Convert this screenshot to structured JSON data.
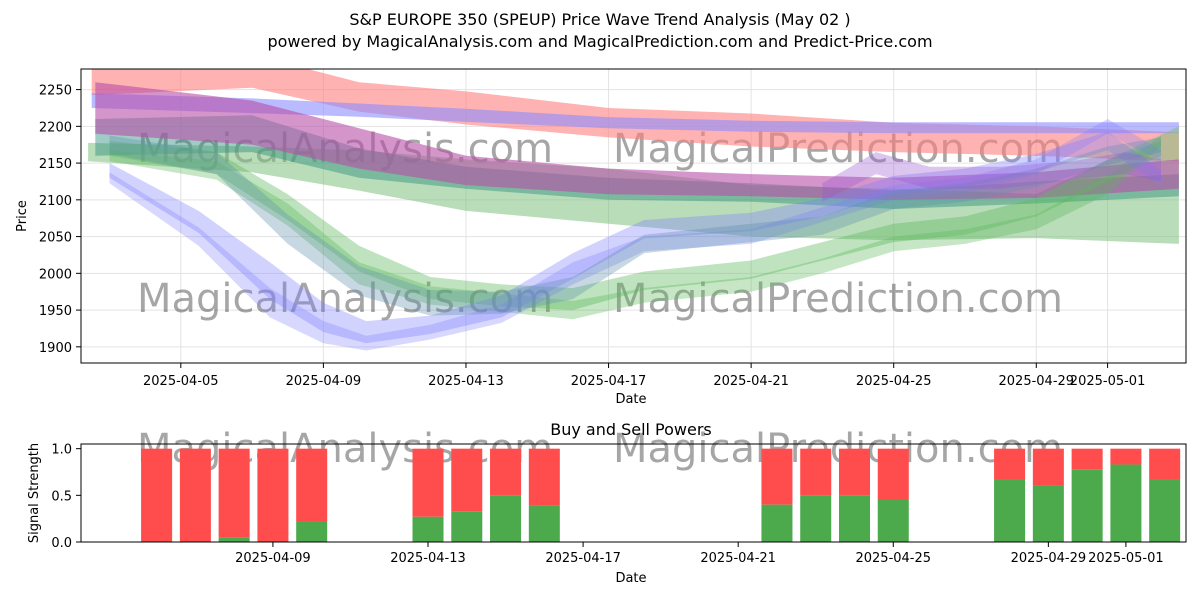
{
  "chart_data": [
    {
      "type": "area",
      "title_line1": "S&P EUROPE 350 (SPEUP) Price Wave Trend Analysis (May 02 )",
      "title_line2": "powered by MagicalAnalysis.com and MagicalPrediction.com and Predict-Price.com",
      "xlabel": "Date",
      "ylabel": "Price",
      "ylim": [
        1878,
        2278
      ],
      "yticks": [
        1900,
        1950,
        2000,
        2050,
        2100,
        2150,
        2200,
        2250
      ],
      "xlim": [
        2.2,
        33.2
      ],
      "xticks": [
        {
          "day": 5,
          "label": "2025-04-05"
        },
        {
          "day": 9,
          "label": "2025-04-09"
        },
        {
          "day": 13,
          "label": "2025-04-13"
        },
        {
          "day": 17,
          "label": "2025-04-17"
        },
        {
          "day": 21,
          "label": "2025-04-21"
        },
        {
          "day": 25,
          "label": "2025-04-25"
        },
        {
          "day": 29,
          "label": "2025-04-29"
        },
        {
          "day": 31,
          "label": "2025-05-01"
        }
      ],
      "watermarks": [
        "MagicalAnalysis.com",
        "MagicalPrediction.com"
      ],
      "bands": [
        {
          "name": "red-upper",
          "color": "#ff7f7f",
          "opacity": 0.6,
          "x": [
            2.5,
            7,
            10,
            13,
            17,
            21,
            25,
            29,
            33
          ],
          "y": [
            2265,
            2275,
            2240,
            2225,
            2205,
            2195,
            2185,
            2180,
            2172
          ],
          "w": [
            45,
            45,
            40,
            45,
            40,
            45,
            40,
            40,
            40
          ]
        },
        {
          "name": "blue-upper",
          "color": "#8c8cff",
          "opacity": 0.6,
          "x": [
            2.5,
            7,
            10,
            13,
            17,
            21,
            25,
            29,
            33
          ],
          "y": [
            2235,
            2228,
            2222,
            2215,
            2205,
            2200,
            2198,
            2198,
            2198
          ],
          "w": [
            20,
            20,
            18,
            18,
            15,
            15,
            15,
            15,
            15
          ]
        },
        {
          "name": "green-wide",
          "color": "#7fbf7f",
          "opacity": 0.55,
          "x": [
            2.4,
            7,
            10,
            13,
            17,
            21,
            25,
            29,
            33
          ],
          "y": [
            2165,
            2155,
            2140,
            2120,
            2105,
            2085,
            2080,
            2078,
            2120
          ],
          "w": [
            25,
            35,
            55,
            70,
            75,
            70,
            70,
            60,
            160
          ]
        },
        {
          "name": "teal-band",
          "color": "#2f8f7f",
          "opacity": 0.45,
          "x": [
            2.6,
            7,
            10,
            13,
            17,
            21,
            25,
            29,
            33
          ],
          "y": [
            2185,
            2190,
            2150,
            2130,
            2115,
            2110,
            2100,
            2110,
            2120
          ],
          "w": [
            50,
            50,
            40,
            30,
            30,
            25,
            25,
            30,
            30
          ]
        },
        {
          "name": "magenta-band",
          "color": "#b84fa8",
          "opacity": 0.6,
          "x": [
            2.6,
            7,
            10,
            13,
            17,
            21,
            25,
            29,
            33
          ],
          "y": [
            2225,
            2205,
            2170,
            2140,
            2125,
            2120,
            2115,
            2120,
            2135
          ],
          "w": [
            70,
            60,
            55,
            40,
            35,
            30,
            30,
            35,
            40
          ]
        },
        {
          "name": "green-wave-a",
          "color": "#5cb85c",
          "opacity": 0.4,
          "x": [
            3,
            6,
            8,
            10,
            12,
            14,
            16,
            18,
            21,
            23,
            25,
            27,
            29,
            31,
            32.5
          ],
          "y": [
            2170,
            2150,
            2090,
            2020,
            1980,
            1970,
            1965,
            1990,
            2005,
            2030,
            2055,
            2065,
            2090,
            2140,
            2170
          ],
          "w": [
            20,
            30,
            35,
            35,
            30,
            30,
            30,
            25,
            25,
            25,
            25,
            25,
            25,
            30,
            20
          ]
        },
        {
          "name": "green-wave-b",
          "color": "#5cb85c",
          "opacity": 0.35,
          "x": [
            3,
            6,
            8,
            10,
            12,
            14,
            16,
            18,
            21,
            23,
            25,
            27,
            29,
            31,
            32.5
          ],
          "y": [
            2160,
            2140,
            2080,
            2000,
            1970,
            1960,
            1950,
            1970,
            1985,
            2010,
            2040,
            2050,
            2070,
            2120,
            2180
          ],
          "w": [
            15,
            25,
            30,
            30,
            25,
            25,
            25,
            20,
            20,
            20,
            20,
            20,
            20,
            25,
            15
          ]
        },
        {
          "name": "blue-wave-a",
          "color": "#7f7fff",
          "opacity": 0.35,
          "x": [
            3,
            5.5,
            7.5,
            9,
            10.2,
            12,
            14,
            16,
            18,
            21,
            23,
            25,
            27,
            29,
            31,
            32.5
          ],
          "y": [
            2140,
            2070,
            1990,
            1940,
            1920,
            1930,
            1955,
            2010,
            2060,
            2070,
            2090,
            2120,
            2130,
            2150,
            2180,
            2130
          ],
          "w": [
            20,
            30,
            50,
            40,
            30,
            25,
            30,
            35,
            25,
            25,
            25,
            25,
            25,
            25,
            25,
            20
          ]
        },
        {
          "name": "blue-wave-b",
          "color": "#7f7fff",
          "opacity": 0.3,
          "x": [
            3,
            5.5,
            7.5,
            9,
            10.2,
            12,
            14,
            16,
            18,
            21,
            23,
            25,
            27,
            29,
            31,
            32.5
          ],
          "y": [
            2130,
            2050,
            1960,
            1920,
            1905,
            1920,
            1945,
            2000,
            2040,
            2050,
            2080,
            2110,
            2120,
            2145,
            2200,
            2160
          ],
          "w": [
            15,
            25,
            40,
            30,
            20,
            20,
            25,
            30,
            20,
            20,
            20,
            20,
            20,
            20,
            20,
            15
          ]
        },
        {
          "name": "blue-teal-wave",
          "color": "#5f8faf",
          "opacity": 0.35,
          "x": [
            3,
            6,
            8,
            10,
            12,
            14,
            16,
            18,
            21,
            23,
            25,
            27,
            29,
            31,
            32.5
          ],
          "y": [
            2175,
            2150,
            2060,
            1990,
            1960,
            1960,
            1980,
            2040,
            2055,
            2065,
            2100,
            2110,
            2130,
            2160,
            2175
          ],
          "w": [
            25,
            30,
            40,
            40,
            35,
            30,
            30,
            25,
            25,
            25,
            25,
            25,
            25,
            25,
            20
          ]
        },
        {
          "name": "purple-wave",
          "color": "#9b59d0",
          "opacity": 0.35,
          "x": [
            23,
            24.5,
            26,
            28,
            30,
            31.5,
            32.5
          ],
          "y": [
            2110,
            2150,
            2130,
            2130,
            2140,
            2150,
            2140
          ],
          "w": [
            25,
            30,
            30,
            30,
            25,
            30,
            30
          ]
        }
      ]
    },
    {
      "type": "bar",
      "title": "Buy and Sell Powers",
      "xlabel": "Date",
      "ylabel": "Signal Strength",
      "ylim": [
        0,
        1.05
      ],
      "yticks": [
        0.0,
        0.5,
        1.0
      ],
      "xlim": [
        4.05,
        32.55
      ],
      "xticks": [
        {
          "day": 9,
          "label": "2025-04-09"
        },
        {
          "day": 13,
          "label": "2025-04-13"
        },
        {
          "day": 17,
          "label": "2025-04-17"
        },
        {
          "day": 21,
          "label": "2025-04-21"
        },
        {
          "day": 25,
          "label": "2025-04-25"
        },
        {
          "day": 29,
          "label": "2025-04-29"
        },
        {
          "day": 31,
          "label": "2025-05-01"
        }
      ],
      "buy_color": "#4caa4c",
      "sell_color": "#ff4c4c",
      "days": [
        6,
        7,
        8,
        9,
        10,
        13,
        14,
        15,
        16,
        22,
        23,
        24,
        25,
        28,
        29,
        30,
        31,
        32
      ],
      "buy": [
        0.0,
        0.0,
        0.05,
        0.0,
        0.22,
        0.27,
        0.33,
        0.5,
        0.39,
        0.4,
        0.5,
        0.5,
        0.45,
        0.67,
        0.61,
        0.78,
        0.83,
        0.67
      ]
    }
  ]
}
